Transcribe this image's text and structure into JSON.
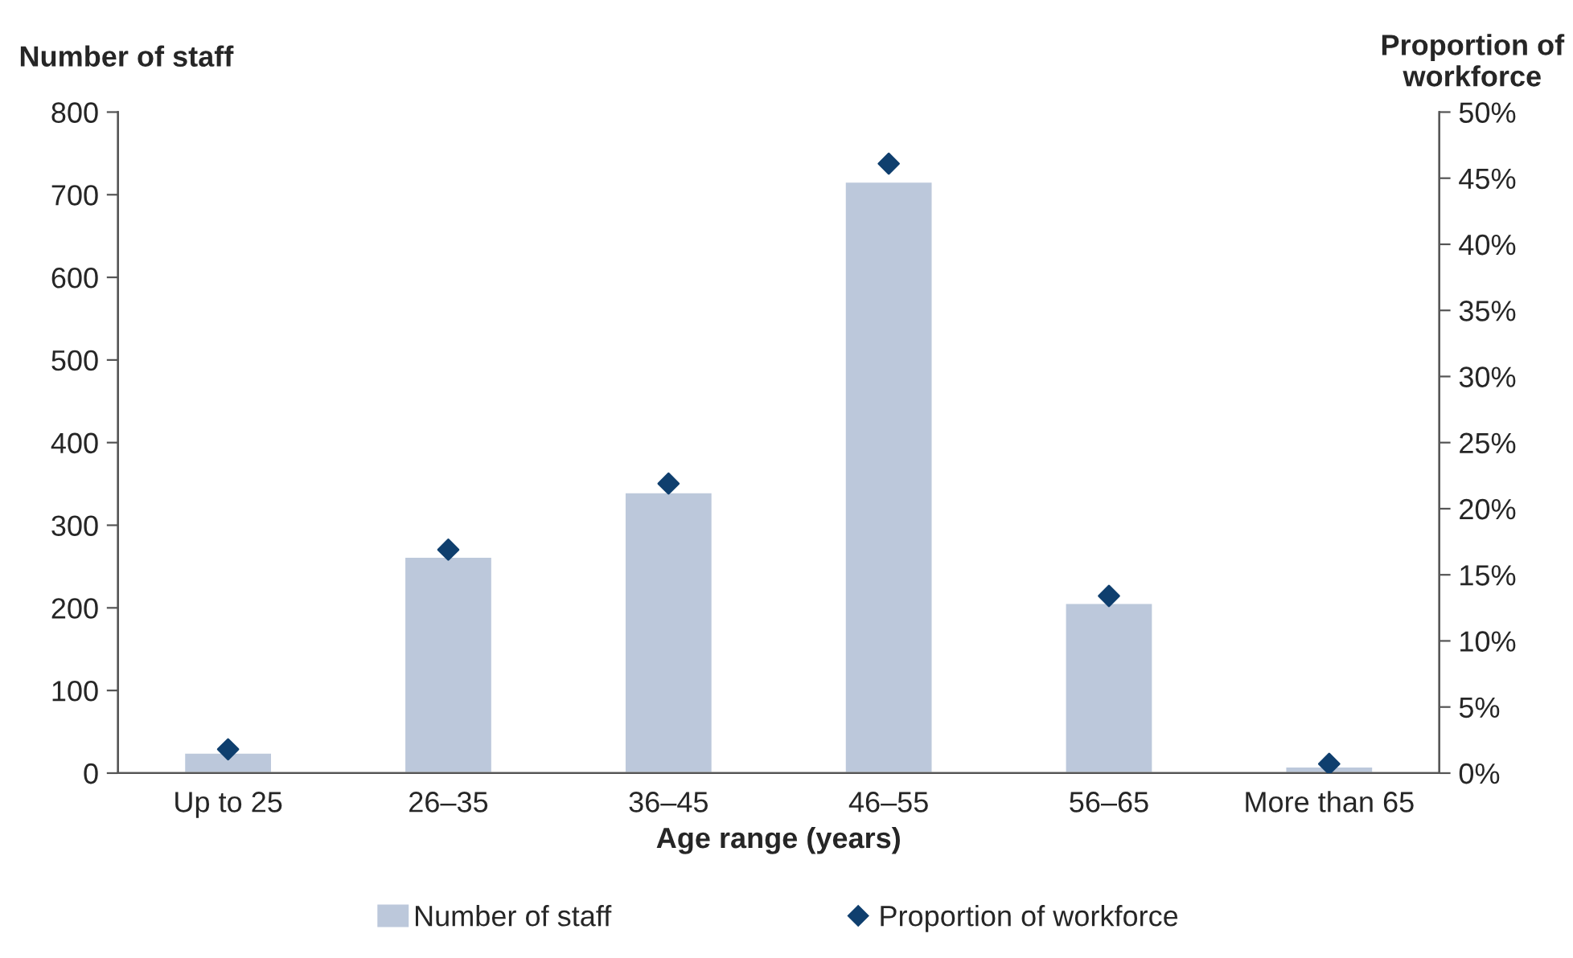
{
  "chart_data": {
    "type": "bar",
    "xlabel": "Age range (years)",
    "ylabel": "Number of staff",
    "y2label": "Proportion of\nworkforce",
    "categories": [
      "Up to 25",
      "26–35",
      "36–45",
      "46–55",
      "56–65",
      "More than 65"
    ],
    "series": [
      {
        "name": "Number of staff",
        "color": "#bcc8db",
        "values": [
          25,
          262,
          340,
          716,
          206,
          8
        ]
      },
      {
        "name": "Proportion of workforce",
        "type": "scatter",
        "axis": "y2",
        "color": "#0f3f6e",
        "marker": "diamond",
        "values": [
          1.8,
          16.9,
          21.9,
          46.1,
          13.4,
          0.7
        ]
      }
    ],
    "ylim": [
      0,
      800
    ],
    "yticks": [
      0,
      100,
      200,
      300,
      400,
      500,
      600,
      700,
      800
    ],
    "y2lim": [
      0,
      50
    ],
    "y2ticks": [
      {
        "value": 0,
        "label": "0%"
      },
      {
        "value": 5,
        "label": "5%"
      },
      {
        "value": 10,
        "label": "10%"
      },
      {
        "value": 15,
        "label": "15%"
      },
      {
        "value": 20,
        "label": "20%"
      },
      {
        "value": 25,
        "label": "25%"
      },
      {
        "value": 30,
        "label": "30%"
      },
      {
        "value": 35,
        "label": "35%"
      },
      {
        "value": 40,
        "label": "40%"
      },
      {
        "value": 45,
        "label": "45%"
      },
      {
        "value": 50,
        "label": "50%"
      }
    ],
    "grid": false,
    "legend": "bottom"
  }
}
